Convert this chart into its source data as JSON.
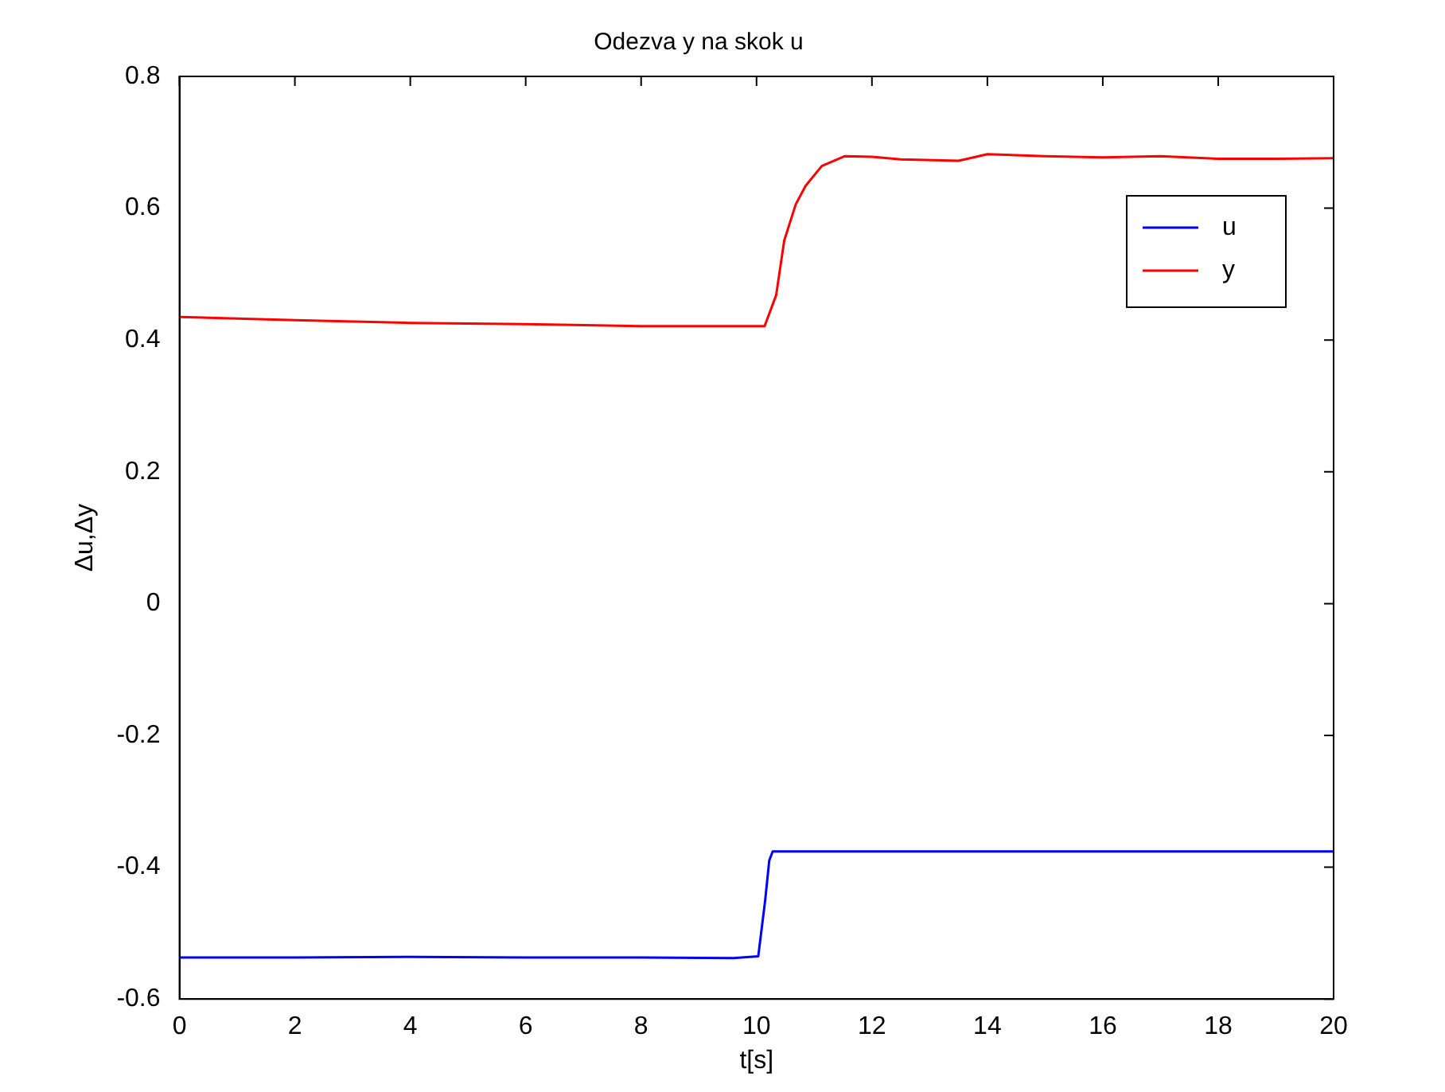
{
  "chart_data": {
    "type": "line",
    "title": "Odezva y na skok u",
    "xlabel": "t[s]",
    "ylabel": "Δu,Δy",
    "xlim": [
      0,
      20
    ],
    "xticks": [
      0,
      2,
      4,
      6,
      8,
      10,
      12,
      14,
      16,
      18,
      20
    ],
    "ylim": [
      -0.6,
      0.8
    ],
    "yticks": [
      -0.6,
      -0.4,
      -0.2,
      0,
      0.2,
      0.4,
      0.6,
      0.8
    ],
    "grid": false,
    "legend": "top right",
    "marker": "none",
    "line_style": "solid",
    "series": [
      {
        "name": "u",
        "color": "#0000ff",
        "x": [
          0,
          2,
          4,
          6,
          8,
          9.6,
          10.03,
          10.15,
          10.22,
          10.28,
          12,
          14,
          16,
          18,
          20
        ],
        "values": [
          -0.537,
          -0.537,
          -0.536,
          -0.537,
          -0.537,
          -0.538,
          -0.535,
          -0.45,
          -0.39,
          -0.376,
          -0.376,
          -0.376,
          -0.376,
          -0.376,
          -0.376
        ]
      },
      {
        "name": "y",
        "color": "#ff0000",
        "x": [
          0,
          2,
          4,
          6,
          8,
          10.14,
          10.34,
          10.48,
          10.68,
          10.85,
          11.13,
          11.53,
          12,
          12.5,
          13.5,
          14,
          15,
          16,
          17,
          18,
          19,
          20
        ],
        "values": [
          0.435,
          0.43,
          0.426,
          0.424,
          0.421,
          0.421,
          0.468,
          0.551,
          0.606,
          0.634,
          0.664,
          0.679,
          0.678,
          0.674,
          0.672,
          0.682,
          0.679,
          0.677,
          0.679,
          0.675,
          0.675,
          0.676
        ]
      }
    ]
  }
}
